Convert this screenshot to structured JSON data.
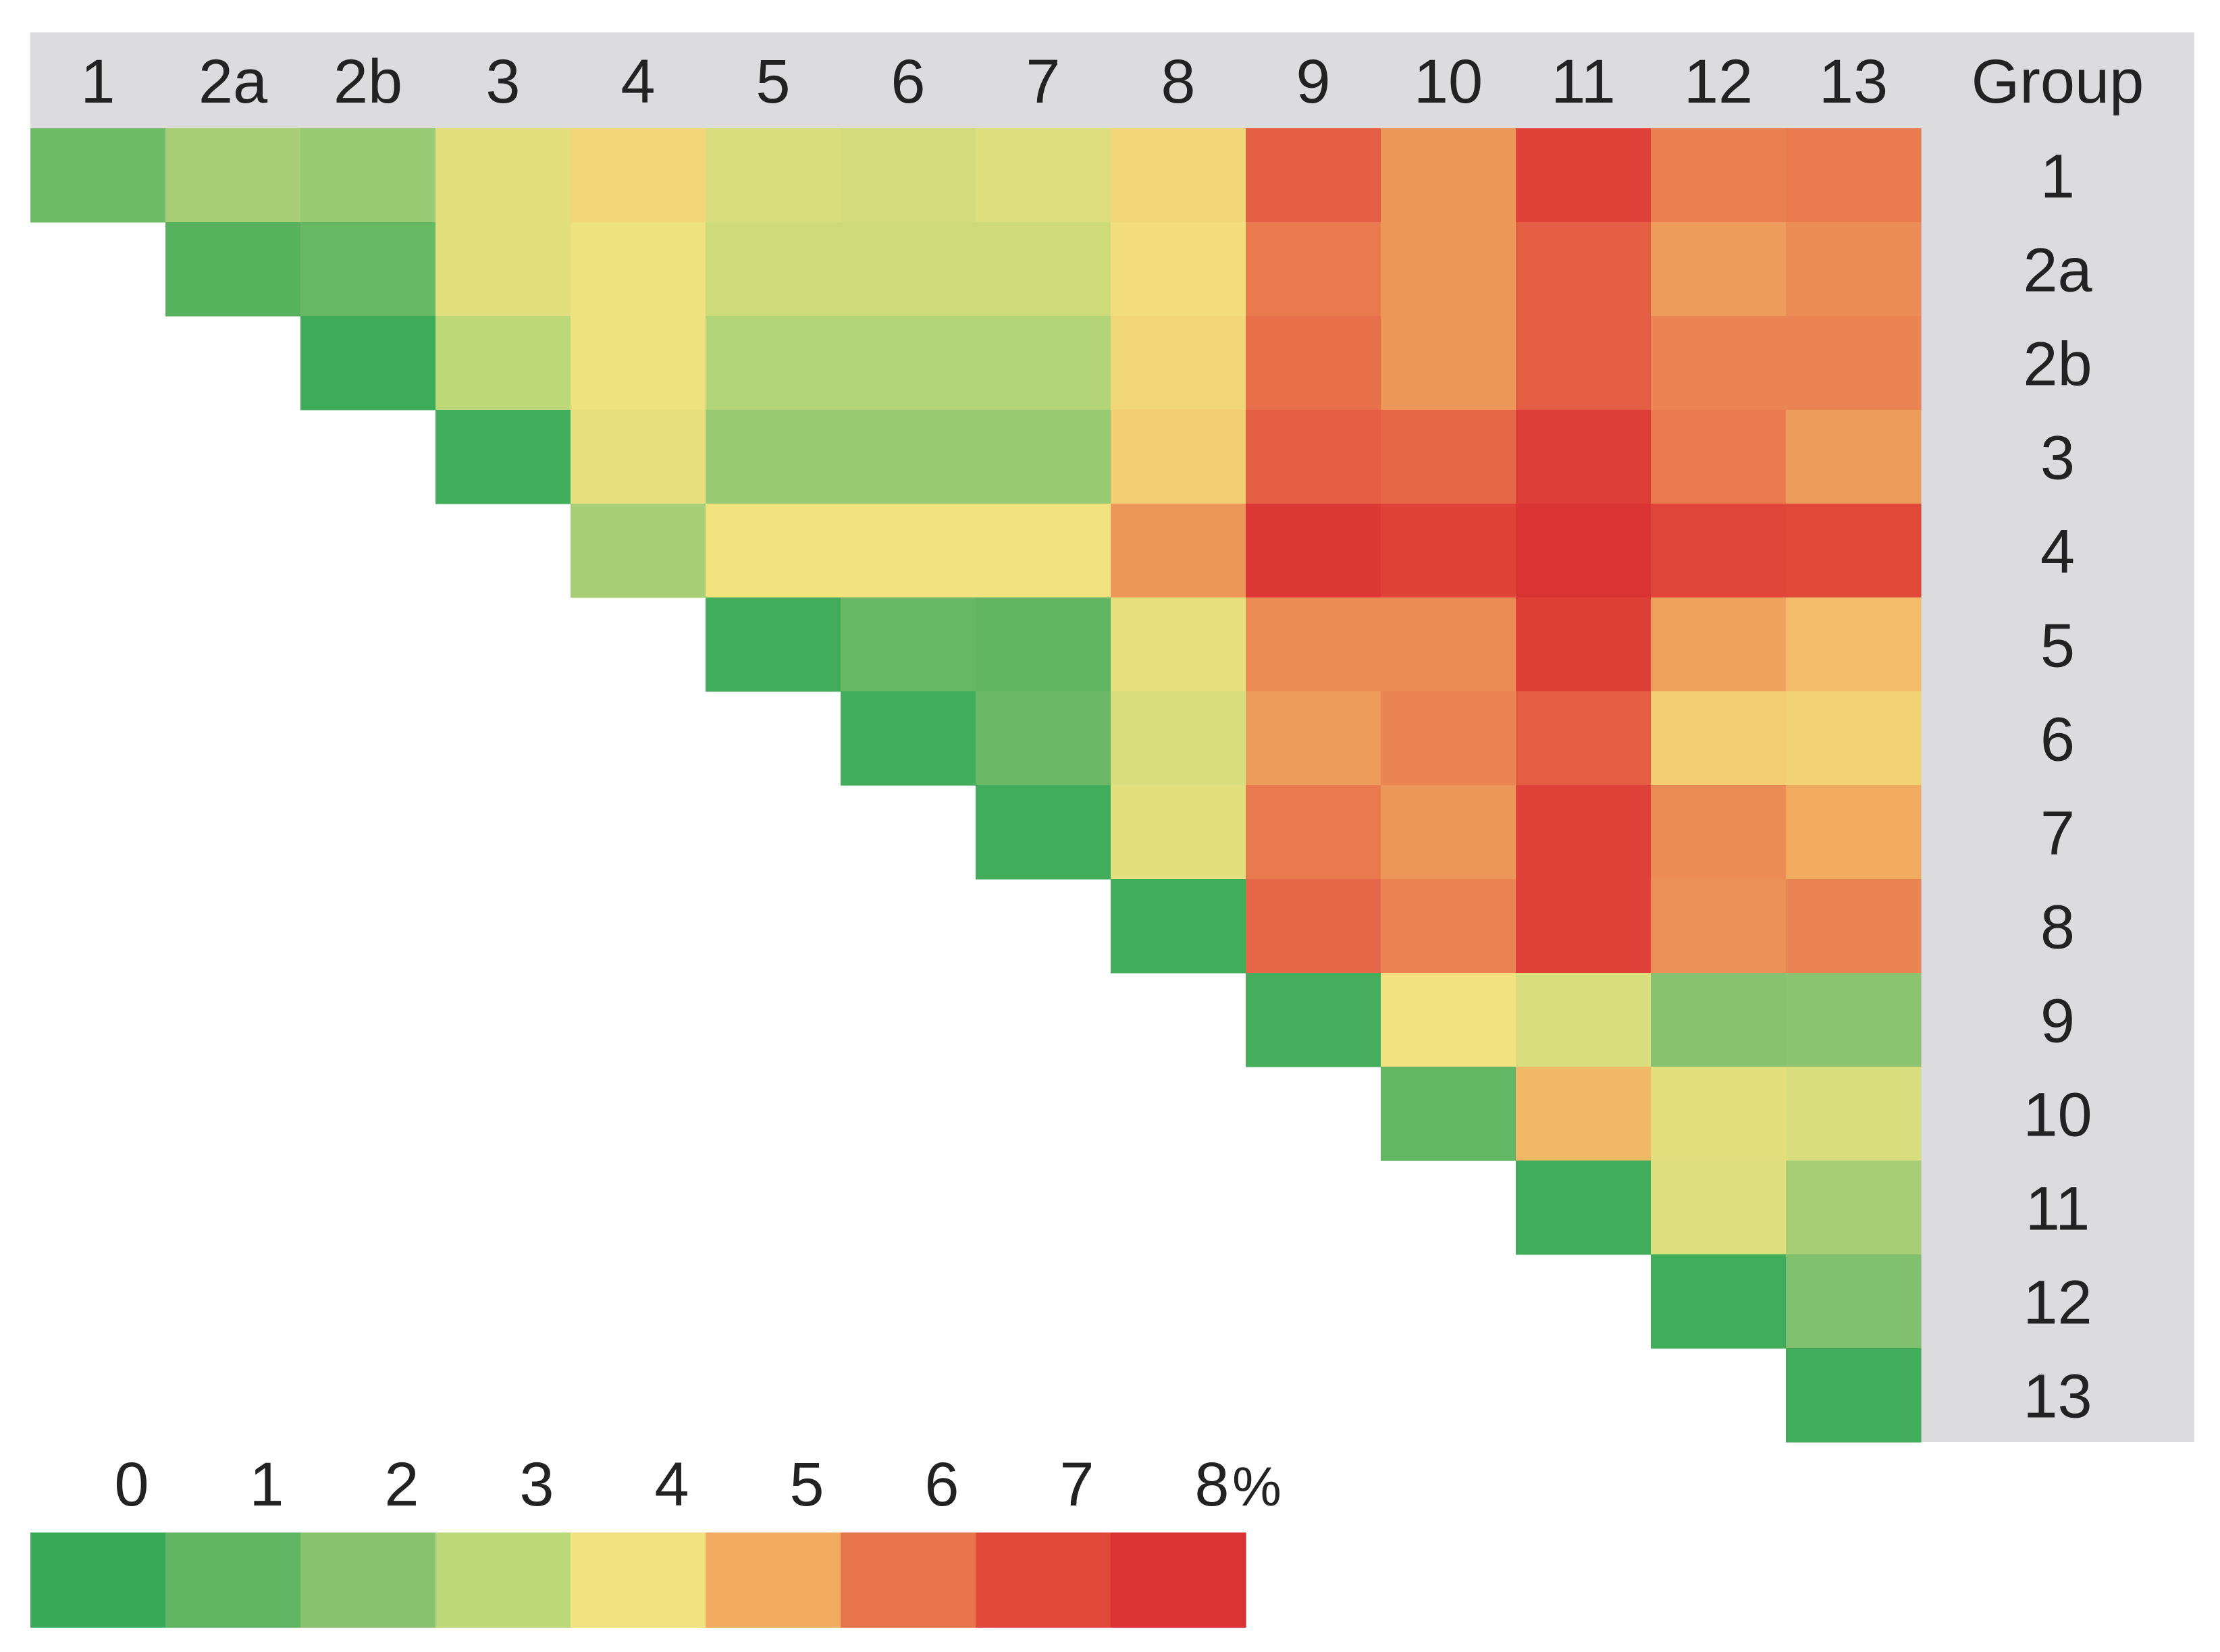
{
  "chart_data": {
    "type": "heatmap",
    "title": "",
    "column_header": "Group",
    "groups": [
      "1",
      "2a",
      "2b",
      "3",
      "4",
      "5",
      "6",
      "7",
      "8",
      "9",
      "10",
      "11",
      "12",
      "13"
    ],
    "unit": "%",
    "scale_min": 0,
    "scale_max": 8,
    "legend": {
      "ticks": [
        "0",
        "1",
        "2",
        "3",
        "4",
        "5",
        "6",
        "7",
        "8"
      ],
      "unit_label": "%",
      "colors": [
        "#3aaa58",
        "#5fb561",
        "#88c270",
        "#bdd879",
        "#f3e280",
        "#f0ad62",
        "#e8744c",
        "#e0483a",
        "#da3333"
      ]
    },
    "values": [
      [
        1.4,
        2.6,
        2.3,
        3.7,
        4.2,
        3.5,
        3.4,
        3.6,
        4.2,
        6.5,
        5.4,
        7.3,
        5.8,
        5.9
      ],
      [
        null,
        0.8,
        1.2,
        3.7,
        3.9,
        3.3,
        3.3,
        3.3,
        4.1,
        5.9,
        5.4,
        6.5,
        5.3,
        5.6
      ],
      [
        null,
        null,
        0.1,
        3.0,
        3.9,
        2.8,
        2.8,
        2.8,
        4.2,
        6.1,
        5.4,
        6.5,
        5.7,
        5.7
      ],
      [
        null,
        null,
        null,
        0.2,
        3.8,
        2.3,
        2.3,
        2.3,
        4.4,
        6.5,
        6.3,
        7.5,
        5.9,
        5.3
      ],
      [
        null,
        null,
        null,
        null,
        2.6,
        4.0,
        4.0,
        4.0,
        5.4,
        7.8,
        7.3,
        8.0,
        7.1,
        7.0
      ],
      [
        null,
        null,
        null,
        null,
        null,
        0.2,
        1.2,
        1.0,
        3.8,
        5.6,
        5.6,
        7.4,
        5.2,
        4.7
      ],
      [
        null,
        null,
        null,
        null,
        null,
        null,
        0.2,
        1.3,
        3.5,
        5.3,
        5.7,
        6.5,
        4.4,
        4.3
      ],
      [
        null,
        null,
        null,
        null,
        null,
        null,
        null,
        0.2,
        3.7,
        5.9,
        5.4,
        7.3,
        5.6,
        5.0
      ],
      [
        null,
        null,
        null,
        null,
        null,
        null,
        null,
        null,
        0.2,
        6.3,
        5.7,
        7.3,
        5.5,
        5.7
      ],
      [
        null,
        null,
        null,
        null,
        null,
        null,
        null,
        null,
        null,
        0.3,
        4.0,
        3.5,
        2.0,
        2.1
      ],
      [
        null,
        null,
        null,
        null,
        null,
        null,
        null,
        null,
        null,
        null,
        1.1,
        4.8,
        3.7,
        3.5
      ],
      [
        null,
        null,
        null,
        null,
        null,
        null,
        null,
        null,
        null,
        null,
        null,
        0.2,
        3.6,
        2.6
      ],
      [
        null,
        null,
        null,
        null,
        null,
        null,
        null,
        null,
        null,
        null,
        null,
        null,
        0.2,
        1.8
      ],
      [
        null,
        null,
        null,
        null,
        null,
        null,
        null,
        null,
        null,
        null,
        null,
        null,
        null,
        0.2
      ]
    ]
  }
}
